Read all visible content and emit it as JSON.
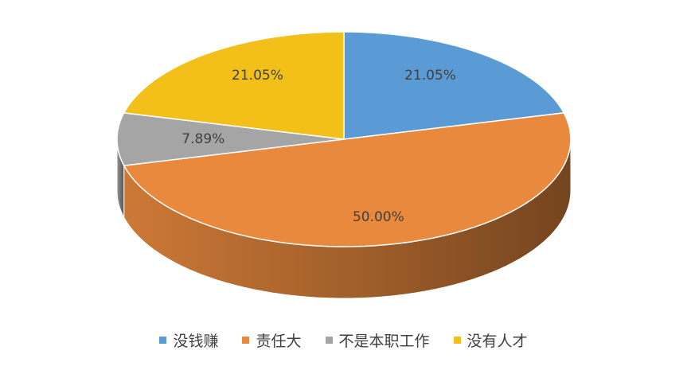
{
  "chart_data": {
    "type": "pie",
    "categories": [
      "没钱赚",
      "责任大",
      "不是本职工作",
      "没有人才"
    ],
    "values": [
      21.05,
      50.0,
      7.89,
      21.05
    ],
    "value_labels": [
      "21.05%",
      "50.00%",
      "7.89%",
      "21.05%"
    ],
    "colors": [
      "#5b9bd5",
      "#e8893d",
      "#a5a5a5",
      "#f2c019"
    ],
    "legend": "bottom"
  }
}
